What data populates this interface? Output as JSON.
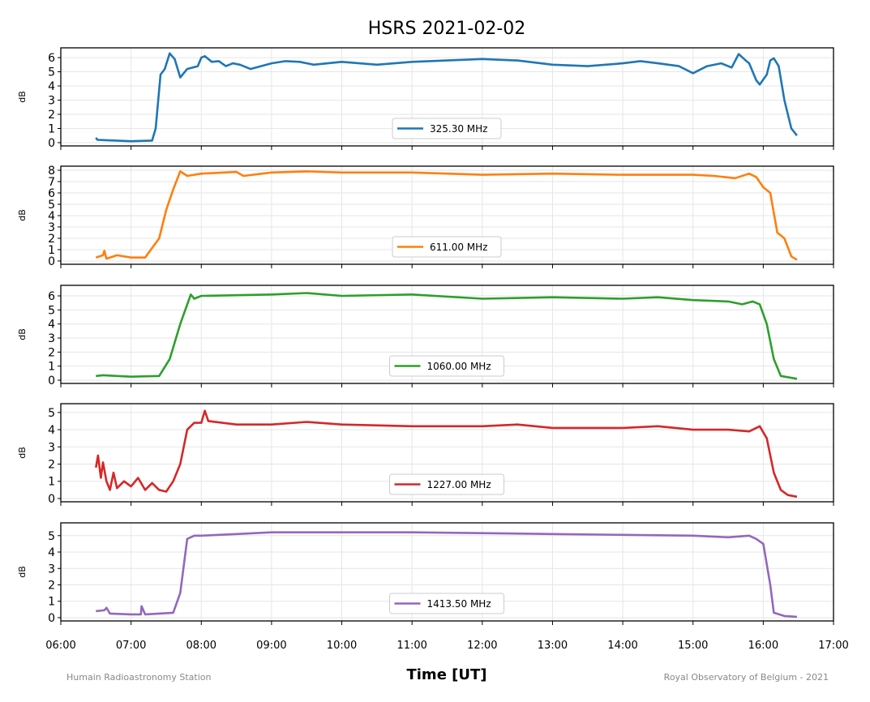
{
  "chart_data": {
    "type": "line",
    "title": "HSRS 2021-02-02",
    "xlabel": "Time [UT]",
    "x_units": "hours UT",
    "xlim": [
      6,
      17
    ],
    "x_ticks": [
      "06:00",
      "07:00",
      "08:00",
      "09:00",
      "10:00",
      "11:00",
      "12:00",
      "13:00",
      "14:00",
      "15:00",
      "16:00",
      "17:00"
    ],
    "grid": true,
    "legend_placement": "lower-center",
    "footer_left": "Humain Radioastronomy Station",
    "footer_right": "Royal Observatory of Belgium - 2021",
    "panels": [
      {
        "name": "325.30 MHz",
        "ylabel": "dB",
        "color": "#1f77b4",
        "ylim": [
          -0.23,
          6.69
        ],
        "yticks": [
          0,
          1,
          2,
          3,
          4,
          5,
          6
        ],
        "points": [
          [
            6.5,
            0.35
          ],
          [
            6.52,
            0.2
          ],
          [
            7.0,
            0.1
          ],
          [
            7.3,
            0.15
          ],
          [
            7.35,
            1.0
          ],
          [
            7.42,
            4.8
          ],
          [
            7.48,
            5.2
          ],
          [
            7.55,
            6.3
          ],
          [
            7.62,
            5.9
          ],
          [
            7.7,
            4.6
          ],
          [
            7.8,
            5.2
          ],
          [
            7.95,
            5.4
          ],
          [
            8.0,
            6.0
          ],
          [
            8.05,
            6.1
          ],
          [
            8.15,
            5.7
          ],
          [
            8.25,
            5.75
          ],
          [
            8.35,
            5.4
          ],
          [
            8.45,
            5.6
          ],
          [
            8.55,
            5.5
          ],
          [
            8.7,
            5.2
          ],
          [
            8.85,
            5.4
          ],
          [
            9.0,
            5.6
          ],
          [
            9.2,
            5.75
          ],
          [
            9.4,
            5.7
          ],
          [
            9.6,
            5.5
          ],
          [
            10.0,
            5.7
          ],
          [
            10.5,
            5.5
          ],
          [
            11.0,
            5.7
          ],
          [
            11.5,
            5.8
          ],
          [
            12.0,
            5.9
          ],
          [
            12.5,
            5.8
          ],
          [
            13.0,
            5.5
          ],
          [
            13.5,
            5.4
          ],
          [
            14.0,
            5.6
          ],
          [
            14.25,
            5.75
          ],
          [
            14.5,
            5.6
          ],
          [
            14.8,
            5.4
          ],
          [
            15.0,
            4.9
          ],
          [
            15.2,
            5.4
          ],
          [
            15.4,
            5.6
          ],
          [
            15.55,
            5.3
          ],
          [
            15.65,
            6.25
          ],
          [
            15.75,
            5.8
          ],
          [
            15.8,
            5.6
          ],
          [
            15.9,
            4.4
          ],
          [
            15.95,
            4.1
          ],
          [
            16.05,
            4.8
          ],
          [
            16.1,
            5.8
          ],
          [
            16.15,
            5.95
          ],
          [
            16.22,
            5.4
          ],
          [
            16.3,
            3.0
          ],
          [
            16.4,
            1.0
          ],
          [
            16.48,
            0.5
          ]
        ]
      },
      {
        "name": "611.00 MHz",
        "ylabel": "dB",
        "color": "#ff7f0e",
        "ylim": [
          -0.29,
          8.36
        ],
        "yticks": [
          0,
          1,
          2,
          3,
          4,
          5,
          6,
          7,
          8
        ],
        "points": [
          [
            6.5,
            0.3
          ],
          [
            6.6,
            0.5
          ],
          [
            6.62,
            0.9
          ],
          [
            6.65,
            0.2
          ],
          [
            6.8,
            0.5
          ],
          [
            7.0,
            0.3
          ],
          [
            7.2,
            0.3
          ],
          [
            7.4,
            2.0
          ],
          [
            7.5,
            4.5
          ],
          [
            7.6,
            6.3
          ],
          [
            7.7,
            7.9
          ],
          [
            7.8,
            7.5
          ],
          [
            8.0,
            7.7
          ],
          [
            8.5,
            7.85
          ],
          [
            8.6,
            7.5
          ],
          [
            9.0,
            7.8
          ],
          [
            9.5,
            7.9
          ],
          [
            10.0,
            7.8
          ],
          [
            11.0,
            7.8
          ],
          [
            12.0,
            7.6
          ],
          [
            13.0,
            7.7
          ],
          [
            14.0,
            7.6
          ],
          [
            15.0,
            7.6
          ],
          [
            15.3,
            7.5
          ],
          [
            15.6,
            7.3
          ],
          [
            15.8,
            7.7
          ],
          [
            15.9,
            7.4
          ],
          [
            16.0,
            6.5
          ],
          [
            16.1,
            6.0
          ],
          [
            16.2,
            2.5
          ],
          [
            16.3,
            2.0
          ],
          [
            16.4,
            0.4
          ],
          [
            16.48,
            0.1
          ]
        ]
      },
      {
        "name": "1060.00 MHz",
        "ylabel": "dB",
        "color": "#2ca02c",
        "ylim": [
          -0.23,
          6.75
        ],
        "yticks": [
          0,
          1,
          2,
          3,
          4,
          5,
          6
        ],
        "points": [
          [
            6.5,
            0.3
          ],
          [
            6.6,
            0.35
          ],
          [
            7.0,
            0.25
          ],
          [
            7.4,
            0.3
          ],
          [
            7.55,
            1.5
          ],
          [
            7.7,
            4.0
          ],
          [
            7.85,
            6.1
          ],
          [
            7.9,
            5.8
          ],
          [
            8.0,
            6.0
          ],
          [
            9.0,
            6.1
          ],
          [
            9.5,
            6.2
          ],
          [
            10.0,
            6.0
          ],
          [
            11.0,
            6.1
          ],
          [
            12.0,
            5.8
          ],
          [
            13.0,
            5.9
          ],
          [
            14.0,
            5.8
          ],
          [
            14.5,
            5.9
          ],
          [
            15.0,
            5.7
          ],
          [
            15.5,
            5.6
          ],
          [
            15.7,
            5.4
          ],
          [
            15.85,
            5.6
          ],
          [
            15.95,
            5.4
          ],
          [
            16.05,
            4.0
          ],
          [
            16.15,
            1.5
          ],
          [
            16.25,
            0.3
          ],
          [
            16.48,
            0.1
          ]
        ]
      },
      {
        "name": "1227.00 MHz",
        "ylabel": "dB",
        "color": "#d62728",
        "ylim": [
          -0.19,
          5.51
        ],
        "yticks": [
          0,
          1,
          2,
          3,
          4,
          5
        ],
        "points": [
          [
            6.5,
            1.8
          ],
          [
            6.53,
            2.5
          ],
          [
            6.57,
            1.2
          ],
          [
            6.6,
            2.1
          ],
          [
            6.65,
            1.0
          ],
          [
            6.7,
            0.5
          ],
          [
            6.75,
            1.5
          ],
          [
            6.8,
            0.6
          ],
          [
            6.9,
            1.0
          ],
          [
            7.0,
            0.7
          ],
          [
            7.1,
            1.2
          ],
          [
            7.2,
            0.5
          ],
          [
            7.3,
            0.9
          ],
          [
            7.4,
            0.5
          ],
          [
            7.5,
            0.4
          ],
          [
            7.6,
            1.0
          ],
          [
            7.7,
            2.0
          ],
          [
            7.8,
            4.0
          ],
          [
            7.9,
            4.4
          ],
          [
            8.0,
            4.4
          ],
          [
            8.05,
            5.1
          ],
          [
            8.1,
            4.5
          ],
          [
            8.5,
            4.3
          ],
          [
            9.0,
            4.3
          ],
          [
            9.5,
            4.45
          ],
          [
            10.0,
            4.3
          ],
          [
            11.0,
            4.2
          ],
          [
            12.0,
            4.2
          ],
          [
            12.5,
            4.3
          ],
          [
            13.0,
            4.1
          ],
          [
            14.0,
            4.1
          ],
          [
            14.5,
            4.2
          ],
          [
            15.0,
            4.0
          ],
          [
            15.5,
            4.0
          ],
          [
            15.8,
            3.9
          ],
          [
            15.95,
            4.2
          ],
          [
            16.05,
            3.5
          ],
          [
            16.15,
            1.5
          ],
          [
            16.25,
            0.5
          ],
          [
            16.35,
            0.2
          ],
          [
            16.48,
            0.1
          ]
        ]
      },
      {
        "name": "1413.50 MHz",
        "ylabel": "dB",
        "color": "#9467bd",
        "ylim": [
          -0.2,
          5.78
        ],
        "yticks": [
          0,
          1,
          2,
          3,
          4,
          5
        ],
        "points": [
          [
            6.5,
            0.4
          ],
          [
            6.62,
            0.45
          ],
          [
            6.65,
            0.6
          ],
          [
            6.7,
            0.25
          ],
          [
            7.0,
            0.2
          ],
          [
            7.14,
            0.2
          ],
          [
            7.15,
            0.7
          ],
          [
            7.2,
            0.2
          ],
          [
            7.6,
            0.3
          ],
          [
            7.7,
            1.5
          ],
          [
            7.8,
            4.8
          ],
          [
            7.9,
            5.0
          ],
          [
            8.0,
            5.0
          ],
          [
            8.5,
            5.1
          ],
          [
            9.0,
            5.2
          ],
          [
            10.0,
            5.2
          ],
          [
            11.0,
            5.2
          ],
          [
            12.0,
            5.15
          ],
          [
            13.0,
            5.1
          ],
          [
            14.0,
            5.05
          ],
          [
            15.0,
            5.0
          ],
          [
            15.5,
            4.9
          ],
          [
            15.8,
            5.0
          ],
          [
            15.9,
            4.8
          ],
          [
            16.0,
            4.5
          ],
          [
            16.1,
            2.0
          ],
          [
            16.15,
            0.3
          ],
          [
            16.3,
            0.1
          ],
          [
            16.48,
            0.05
          ]
        ]
      }
    ]
  }
}
